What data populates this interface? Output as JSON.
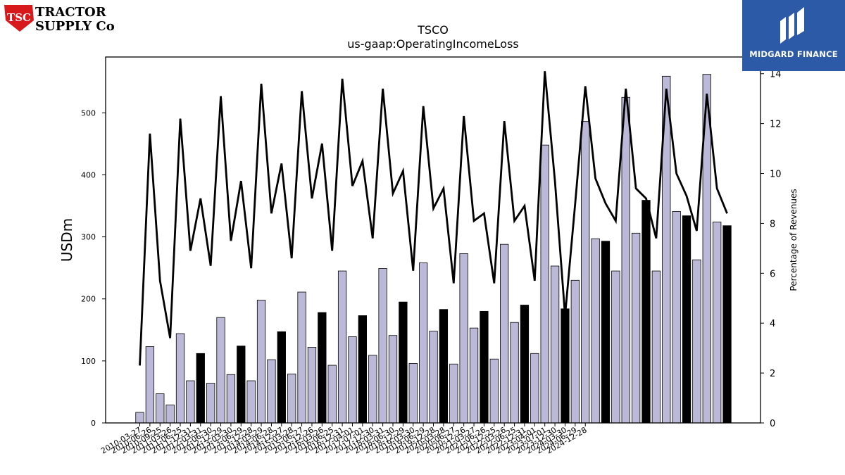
{
  "brand": {
    "logo_mark": "TSC",
    "logo_line1": "TRACTOR",
    "logo_line2": "SUPPLY Co",
    "badge_text": "MIDGARD FINANCE",
    "badge_color": "#2c5aa6",
    "logo_color": "#d7191c"
  },
  "chart_data": {
    "type": "bar",
    "title": "TSCO",
    "subtitle": "us-gaap:OperatingIncomeLoss",
    "ylabel": "USDm",
    "y2label": "Percentage of Revenues",
    "ylim": [
      0,
      590
    ],
    "y2lim": [
      0,
      14.67
    ],
    "yticks": [
      0,
      100,
      200,
      300,
      400,
      500
    ],
    "y2ticks": [
      0,
      2,
      4,
      6,
      8,
      10,
      12,
      14
    ],
    "colors": {
      "quarter_bar": "#bcb9d8",
      "annual_bar": "#000000",
      "line": "#000000"
    },
    "categories": [
      "2010-03-27",
      "2010-06-26",
      "2010-09-25",
      "2011-03-26",
      "2011-06-25",
      "2011-12-31",
      "2012-03-31",
      "2012-06-30",
      "2012-12-29",
      "2013-03-30",
      "2013-06-29",
      "2013-12-28",
      "2014-03-29",
      "2014-06-28",
      "2014-12-27",
      "2015-03-28",
      "2015-06-27",
      "2015-12-26",
      "2016-03-26",
      "2016-06-25",
      "2016-12-31",
      "2017-04-01",
      "2017-07-01",
      "2017-12-30",
      "2018-03-31",
      "2018-06-30",
      "2018-12-29",
      "2019-03-30",
      "2019-06-29",
      "2019-12-28",
      "2020-03-28",
      "2020-06-27",
      "2020-12-26",
      "2021-03-27",
      "2021-06-26",
      "2021-12-25",
      "2022-03-26",
      "2022-06-25",
      "2022-12-31",
      "2023-04-01",
      "2023-07-01",
      "2023-12-30",
      "2024-03-30",
      "2024-06-29",
      "2024-12-28"
    ],
    "xtick_labels": [
      "2010-03-27",
      "2010-06-26",
      "2010-09-25",
      "2011-03-26",
      "2011-06-25",
      "2011-12-31",
      "2012-03-31",
      "2012-06-30",
      "2012-12-29",
      "2013-03-30",
      "2013-06-29",
      "2013-12-28",
      "2014-03-29",
      "2014-06-28",
      "2014-12-27",
      "2015-03-28",
      "2015-06-27",
      "2015-12-26",
      "2016-03-26",
      "2016-06-25",
      "2016-12-31",
      "2017-04-01",
      "2017-07-01",
      "2017-12-30",
      "2018-03-31",
      "2018-06-30",
      "2018-12-29",
      "2019-03-30",
      "2019-06-29",
      "2019-12-28",
      "2020-03-28",
      "2020-06-27",
      "2020-12-26",
      "2021-03-27",
      "2021-06-26",
      "2021-12-25",
      "2022-03-26",
      "2022-06-25",
      "2022-12-31",
      "2023-04-01",
      "2023-07-01",
      "2023-12-30",
      "2024-03-30",
      "2024-06-29",
      "2024-12-28"
    ],
    "bar_values": [
      17,
      123,
      47,
      29,
      144,
      68,
      112,
      64,
      170,
      78,
      124,
      68,
      198,
      102,
      147,
      79,
      211,
      122,
      178,
      93,
      245,
      139,
      173,
      109,
      249,
      141,
      195,
      96,
      258,
      148,
      183,
      95,
      273,
      153,
      180,
      103,
      288,
      162,
      190,
      112,
      448,
      253,
      184,
      230,
      486,
      297,
      293,
      245,
      525,
      306,
      359,
      245,
      559,
      341,
      334,
      263,
      562,
      324,
      318
    ],
    "bar_is_annual": [
      false,
      false,
      false,
      false,
      false,
      false,
      true,
      false,
      false,
      false,
      true,
      false,
      false,
      false,
      true,
      false,
      false,
      false,
      true,
      false,
      false,
      false,
      true,
      false,
      false,
      false,
      true,
      false,
      false,
      false,
      true,
      false,
      false,
      false,
      true,
      false,
      false,
      false,
      true,
      false,
      false,
      false,
      true,
      false,
      false,
      false,
      true,
      false,
      false,
      false,
      true,
      false,
      false,
      false,
      true,
      false,
      false,
      false,
      true
    ],
    "margin_pct": [
      2.3,
      11.6,
      5.7,
      3.4,
      12.2,
      6.9,
      9.0,
      6.3,
      13.1,
      7.3,
      9.7,
      6.2,
      13.6,
      8.4,
      10.4,
      6.6,
      13.3,
      9.0,
      11.2,
      6.9,
      13.8,
      9.5,
      10.5,
      7.4,
      13.4,
      9.2,
      10.1,
      6.1,
      12.7,
      8.6,
      9.4,
      5.6,
      12.3,
      8.1,
      8.4,
      5.6,
      12.1,
      8.1,
      8.7,
      5.7,
      14.1,
      9.7,
      4.3,
      8.8,
      13.5,
      9.8,
      8.8,
      8.1,
      13.4,
      9.4,
      9.0,
      7.4,
      13.4,
      10.0,
      9.1,
      7.7,
      13.2,
      9.4,
      8.4
    ]
  }
}
